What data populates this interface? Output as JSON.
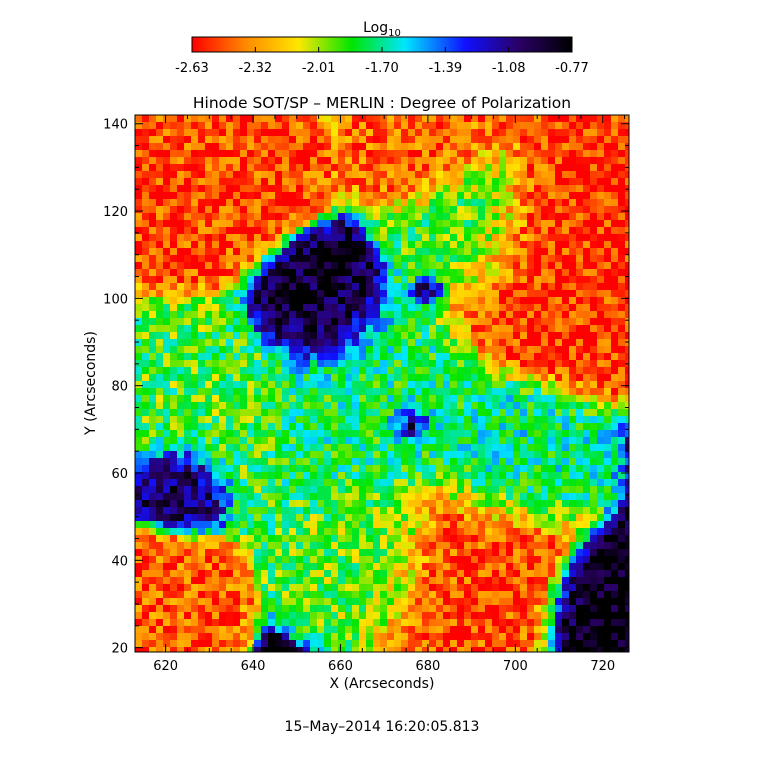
{
  "chart_data": {
    "type": "heatmap",
    "title": "Hinode SOT/SP – MERLIN : Degree of Polarization",
    "xlabel": "X (Arcseconds)",
    "ylabel": "Y (Arcseconds)",
    "xlim": [
      613,
      726
    ],
    "ylim": [
      19,
      142
    ],
    "x_ticks": [
      620,
      640,
      660,
      680,
      700,
      720
    ],
    "y_ticks": [
      20,
      40,
      60,
      80,
      100,
      120,
      140
    ],
    "colorbar": {
      "label_base": "Log",
      "label_sub": "10",
      "range": [
        -2.63,
        -0.77
      ],
      "ticks": [
        "-2.63",
        "-2.32",
        "-2.01",
        "-1.70",
        "-1.39",
        "-1.08",
        "-0.77"
      ],
      "colors": [
        "#ff0000",
        "#ff8800",
        "#ffe600",
        "#00e600",
        "#00e6ff",
        "#1010ff",
        "#2a0066",
        "#000000"
      ]
    },
    "features": [
      {
        "x": 655,
        "y": 98,
        "r": 8,
        "v": -0.85
      },
      {
        "x": 624,
        "y": 58,
        "r": 6,
        "v": -0.9
      },
      {
        "x": 676,
        "y": 71,
        "r": 3,
        "v": -0.95
      },
      {
        "x": 680,
        "y": 102,
        "r": 2,
        "v": -1.0
      },
      {
        "x": 723,
        "y": 29,
        "r": 8,
        "v": -0.8
      },
      {
        "x": 666,
        "y": 74,
        "r": 14,
        "v": -1.75
      },
      {
        "x": 630,
        "y": 74,
        "r": 12,
        "v": -1.85
      },
      {
        "x": 690,
        "y": 116,
        "r": 10,
        "v": -1.8
      },
      {
        "x": 697,
        "y": 62,
        "r": 10,
        "v": -1.7
      },
      {
        "x": 667,
        "y": 44,
        "r": 10,
        "v": -1.9
      },
      {
        "x": 620,
        "y": 32,
        "r": 8,
        "v": -2.45
      },
      {
        "x": 708,
        "y": 110,
        "r": 14,
        "v": -2.55
      },
      {
        "x": 690,
        "y": 40,
        "r": 12,
        "v": -2.5
      },
      {
        "x": 628,
        "y": 128,
        "r": 12,
        "v": -2.5
      },
      {
        "x": 680,
        "y": 134,
        "r": 8,
        "v": -2.45
      }
    ],
    "footer": "15–May–2014 16:20:05.813"
  }
}
